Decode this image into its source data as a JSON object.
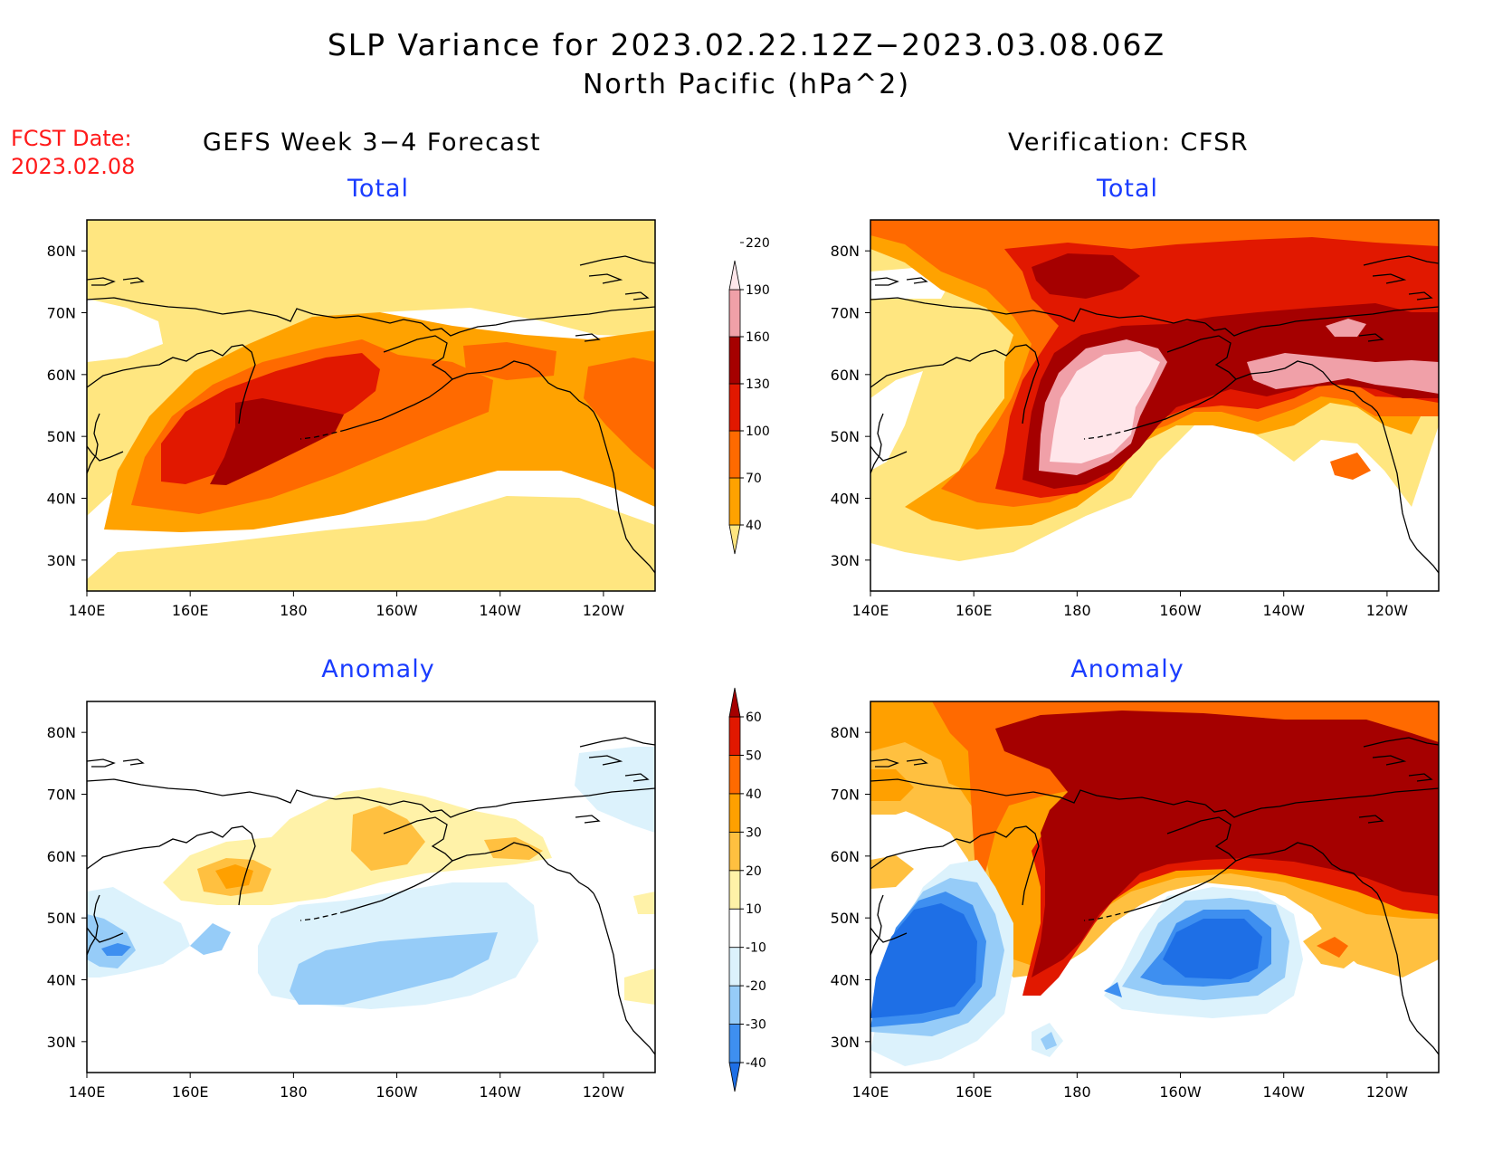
{
  "title": "SLP Variance for 2023.02.22.12Z−2023.03.08.06Z",
  "subtitle": "North Pacific (hPa^2)",
  "forecast_date": {
    "label": "FCST Date:",
    "value": "2023.02.08"
  },
  "left_column_title": "GEFS Week 3−4 Forecast",
  "right_column_title": "Verification: CFSR",
  "panels": [
    {
      "id": "gefs-total",
      "title": "Total"
    },
    {
      "id": "cfsr-total",
      "title": "Total"
    },
    {
      "id": "gefs-anomaly",
      "title": "Anomaly"
    },
    {
      "id": "cfsr-anomaly",
      "title": "Anomaly"
    }
  ],
  "axes": {
    "lon_ticks": [
      "140E",
      "160E",
      "180",
      "160W",
      "140W",
      "120W"
    ],
    "lat_ticks": [
      "30N",
      "40N",
      "50N",
      "60N",
      "70N",
      "80N"
    ],
    "lon_range": [
      140,
      250
    ],
    "lat_range": [
      25,
      85
    ]
  },
  "total_colorbar": {
    "levels": [
      "40",
      "70",
      "100",
      "130",
      "160",
      "190",
      "220"
    ],
    "colors": [
      "#ffe680",
      "#ffa200",
      "#ff6a00",
      "#e11800",
      "#a50000",
      "#f0a0a8",
      "#ffe6ea"
    ]
  },
  "anomaly_colorbar": {
    "levels": [
      "-40",
      "-30",
      "-20",
      "-10",
      "10",
      "20",
      "30",
      "40",
      "50",
      "60"
    ],
    "colors": [
      "#1e6fe6",
      "#3e8ff0",
      "#96ccf8",
      "#dcf2fc",
      "#ffffff",
      "#fff2a8",
      "#ffc040",
      "#ffa000",
      "#ff6a00",
      "#e11800",
      "#a50000"
    ]
  }
}
